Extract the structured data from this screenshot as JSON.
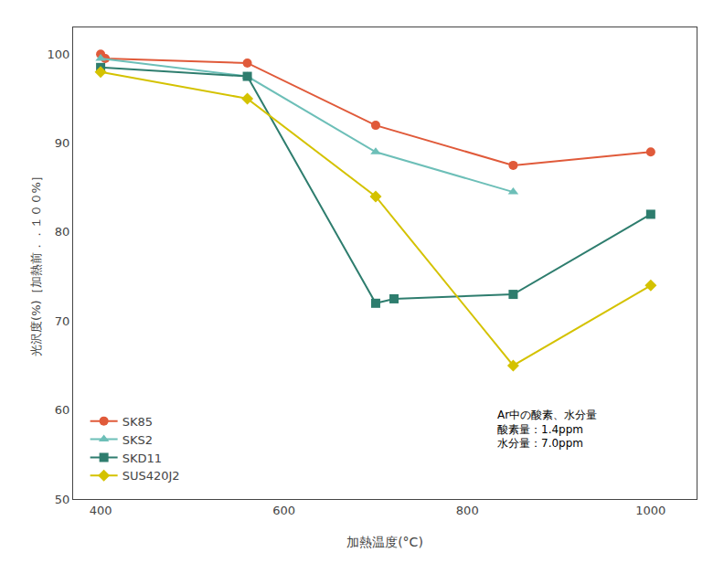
{
  "chart_data": {
    "type": "line",
    "xlabel": "加熱温度(°C)",
    "ylabel": "光沢度(%)［加熱前．．１００%］",
    "xlim": [
      370,
      1050
    ],
    "ylim": [
      50,
      103
    ],
    "xticks": [
      400,
      600,
      800,
      1000
    ],
    "yticks": [
      50,
      60,
      70,
      80,
      90,
      100
    ],
    "grid": false,
    "legend": "lower left",
    "series": [
      {
        "name": "SK85",
        "color": "#e05a3a",
        "marker": "circle",
        "x": [
          400,
          405,
          560,
          700,
          850,
          1000
        ],
        "values": [
          100.0,
          99.5,
          99.0,
          92.0,
          87.5,
          89.0
        ]
      },
      {
        "name": "SKS2",
        "color": "#6dbfb8",
        "marker": "triangle-up",
        "x": [
          400,
          560,
          700,
          850
        ],
        "values": [
          99.5,
          97.5,
          89.0,
          84.5
        ]
      },
      {
        "name": "SKD11",
        "color": "#2e7d6e",
        "marker": "square",
        "x": [
          400,
          560,
          700,
          720,
          850,
          1000
        ],
        "values": [
          98.5,
          97.5,
          72.0,
          72.5,
          73.0,
          82.0
        ]
      },
      {
        "name": "SUS420J2",
        "color": "#d4c200",
        "marker": "diamond",
        "x": [
          400,
          560,
          700,
          850,
          1000
        ],
        "values": [
          98.0,
          95.0,
          84.0,
          65.0,
          74.0
        ]
      }
    ],
    "annotation": "Ar中の酸素、水分量\n酸素量：1.4ppm\n水分量：7.0ppm"
  }
}
